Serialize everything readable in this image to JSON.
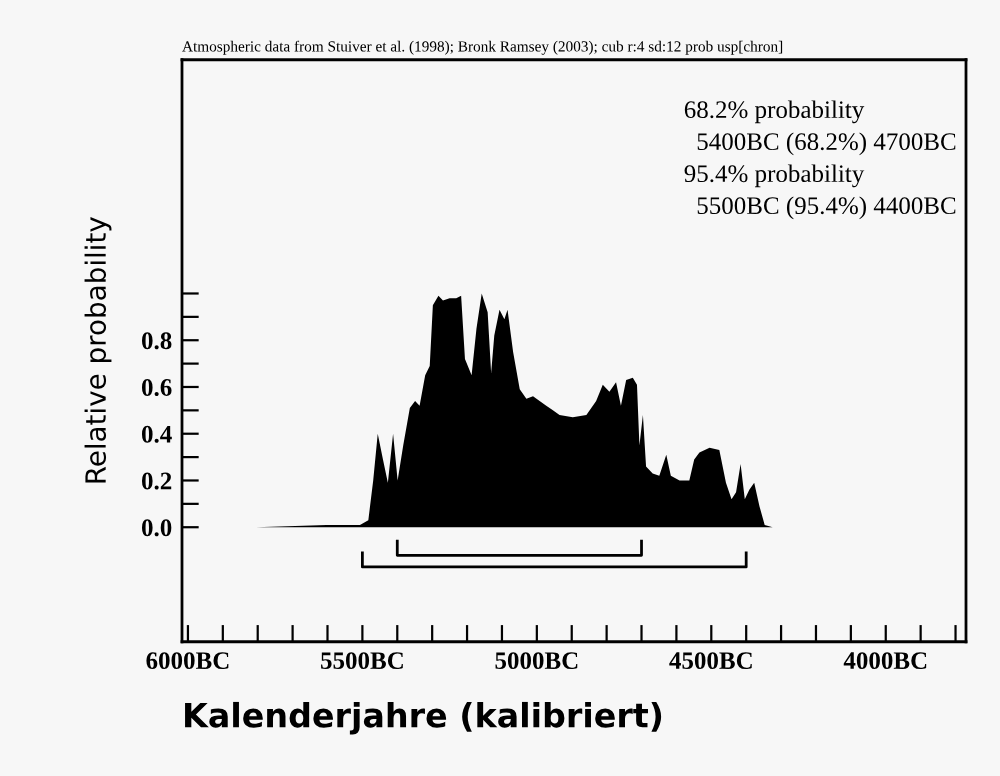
{
  "chart_data": {
    "type": "area",
    "title": "Atmospheric data from Stuiver et al. (1998); Bronk Ramsey (2003); cub r:4 sd:12 prob usp[chron]",
    "xlabel": "Kalenderjahre (kalibriert)",
    "ylabel": "Relative probability",
    "annotations": [
      "68.2% probability",
      "  5400BC (68.2%) 4700BC",
      "95.4% probability",
      "  5500BC (95.4%) 4400BC"
    ],
    "series": [
      {
        "color": "#000000",
        "x": [
          5805,
          5603,
          5507,
          5483,
          5469,
          5456,
          5441,
          5427,
          5412,
          5399,
          5383,
          5364,
          5349,
          5336,
          5320,
          5307,
          5298,
          5282,
          5269,
          5250,
          5231,
          5217,
          5206,
          5187,
          5173,
          5158,
          5141,
          5131,
          5122,
          5107,
          5093,
          5084,
          5068,
          5049,
          5030,
          5011,
          4992,
          4973,
          4954,
          4935,
          4897,
          4858,
          4830,
          4811,
          4792,
          4773,
          4759,
          4744,
          4725,
          4713,
          4706,
          4696,
          4687,
          4668,
          4649,
          4629,
          4616,
          4591,
          4563,
          4549,
          4534,
          4505,
          4477,
          4458,
          4442,
          4429,
          4416,
          4404,
          4391,
          4377,
          4362,
          4347,
          4324,
          3965
        ],
        "values": [
          0,
          0.01,
          0.01,
          0.03,
          0.2,
          0.4,
          0.29,
          0.19,
          0.4,
          0.2,
          0.35,
          0.51,
          0.54,
          0.52,
          0.65,
          0.69,
          0.95,
          0.99,
          0.97,
          0.98,
          0.98,
          0.99,
          0.72,
          0.65,
          0.85,
          1.0,
          0.92,
          0.66,
          0.82,
          0.93,
          0.89,
          0.93,
          0.75,
          0.59,
          0.55,
          0.56,
          0.54,
          0.52,
          0.5,
          0.48,
          0.47,
          0.48,
          0.54,
          0.61,
          0.58,
          0.62,
          0.52,
          0.63,
          0.64,
          0.61,
          0.35,
          0.48,
          0.26,
          0.23,
          0.22,
          0.31,
          0.22,
          0.2,
          0.2,
          0.29,
          0.32,
          0.34,
          0.33,
          0.19,
          0.12,
          0.15,
          0.27,
          0.12,
          0.16,
          0.19,
          0.09,
          0.01,
          0,
          0
        ]
      },
      {
        "type": "line",
        "color": "#000000",
        "x": [
          5400,
          5400,
          4700,
          4700
        ],
        "values": [
          -0.06,
          -0.12,
          -0.12,
          -0.06
        ]
      },
      {
        "type": "line",
        "color": "#000000",
        "x": [
          5500,
          5500,
          4400,
          4400
        ],
        "values": [
          -0.11,
          -0.17,
          -0.17,
          -0.11
        ]
      }
    ],
    "xlim": [
      6017,
      3770
    ],
    "xticks": [
      {
        "value": 6000,
        "label": "6000BC"
      },
      {
        "value": 5900,
        "label": null
      },
      {
        "value": 5800,
        "label": null
      },
      {
        "value": 5700,
        "label": null
      },
      {
        "value": 5600,
        "label": null
      },
      {
        "value": 5500,
        "label": "5500BC"
      },
      {
        "value": 5400,
        "label": null
      },
      {
        "value": 5300,
        "label": null
      },
      {
        "value": 5200,
        "label": null
      },
      {
        "value": 5100,
        "label": null
      },
      {
        "value": 5000,
        "label": "5000BC"
      },
      {
        "value": 4900,
        "label": null
      },
      {
        "value": 4800,
        "label": null
      },
      {
        "value": 4700,
        "label": null
      },
      {
        "value": 4600,
        "label": null
      },
      {
        "value": 4500,
        "label": "4500BC"
      },
      {
        "value": 4400,
        "label": null
      },
      {
        "value": 4300,
        "label": null
      },
      {
        "value": 4200,
        "label": null
      },
      {
        "value": 4100,
        "label": null
      },
      {
        "value": 4000,
        "label": "4000BC"
      },
      {
        "value": 3900,
        "label": null
      },
      {
        "value": 3800,
        "label": null
      }
    ],
    "ylim": [
      -0.49,
      2.0
    ],
    "yticks": [
      {
        "value": 0,
        "label": "0.0"
      },
      {
        "value": 0.1,
        "label": null
      },
      {
        "value": 0.2,
        "label": "0.2"
      },
      {
        "value": 0.3,
        "label": null
      },
      {
        "value": 0.4,
        "label": "0.4"
      },
      {
        "value": 0.5,
        "label": null
      },
      {
        "value": 0.6,
        "label": "0.6"
      },
      {
        "value": 0.7,
        "label": null
      },
      {
        "value": 0.8,
        "label": "0.8"
      },
      {
        "value": 0.9,
        "label": null
      },
      {
        "value": 1.0,
        "label": null
      }
    ],
    "grid": false,
    "legend": false
  }
}
